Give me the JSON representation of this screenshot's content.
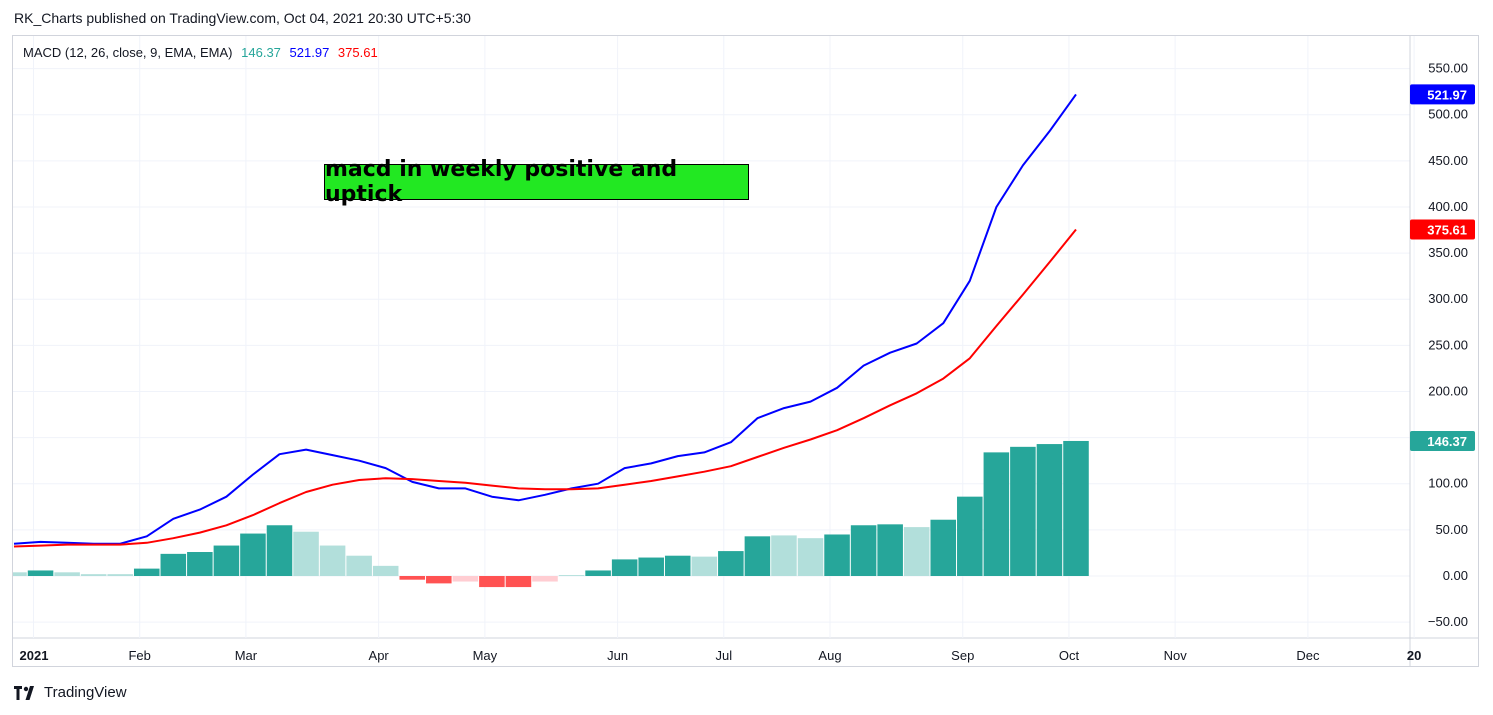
{
  "header": {
    "publisher_line": "RK_Charts published on TradingView.com, Oct 04, 2021 20:30 UTC+5:30"
  },
  "legend": {
    "indicator": "MACD (12, 26, close, 9, EMA, EMA)",
    "hist_value": "146.37",
    "macd_value": "521.97",
    "signal_value": "375.61"
  },
  "annotation": {
    "text": "macd in weekly positive and uptick"
  },
  "footer": {
    "brand": "TradingView"
  },
  "colors": {
    "macd": "#0000ff",
    "signal": "#ff0000",
    "hist_pos_strong": "#26a69a",
    "hist_pos_weak": "#b2dfdb",
    "hist_neg_strong": "#ff5252",
    "hist_neg_weak": "#ffcdd2"
  },
  "chart_data": {
    "type": "line",
    "title": "",
    "ylim": [
      -60,
      570
    ],
    "y_ticks": [
      "550.00",
      "500.00",
      "450.00",
      "400.00",
      "350.00",
      "300.00",
      "250.00",
      "200.00",
      "150.00",
      "100.00",
      "50.00",
      "0.00",
      "−50.00"
    ],
    "x_tick_labels": [
      "2021",
      "Feb",
      "Mar",
      "Apr",
      "May",
      "Jun",
      "Jul",
      "Aug",
      "Sep",
      "Oct",
      "Nov",
      "Dec",
      "20"
    ],
    "x_tick_weeks": [
      0,
      4,
      8,
      13,
      17,
      22,
      26,
      30,
      35,
      39,
      43,
      48,
      52
    ],
    "grid": true,
    "series": [
      {
        "name": "MACD",
        "type": "line",
        "color": "#0000ff",
        "values": [
          35,
          37,
          36,
          35,
          35,
          43,
          62,
          72,
          86,
          110,
          132,
          137,
          131,
          125,
          117,
          102,
          95,
          95,
          86,
          82,
          88,
          95,
          100,
          117,
          122,
          130,
          134,
          145,
          171,
          182,
          189,
          204,
          228,
          242,
          252,
          274,
          320,
          400,
          445,
          482,
          521.97
        ]
      },
      {
        "name": "Signal",
        "type": "line",
        "color": "#ff0000",
        "values": [
          32,
          33,
          34,
          34,
          34,
          36,
          41,
          47,
          55,
          66,
          79,
          91,
          99,
          104,
          106,
          105,
          103,
          101,
          98,
          95,
          94,
          94,
          95,
          99,
          103,
          108,
          113,
          119,
          129,
          139,
          148,
          158,
          171,
          185,
          198,
          214,
          236,
          271,
          305,
          340,
          375.61
        ]
      },
      {
        "name": "Histogram",
        "type": "bar",
        "values": [
          4,
          6,
          4,
          2,
          2,
          8,
          24,
          26,
          33,
          46,
          55,
          48,
          33,
          22,
          11,
          -4,
          -8,
          -6,
          -12,
          -12,
          -6,
          1,
          6,
          18,
          20,
          22,
          21,
          27,
          43,
          44,
          41,
          45,
          55,
          56,
          53,
          61,
          86,
          134,
          140,
          143,
          146.37
        ],
        "shade": [
          "w",
          "s",
          "w",
          "w",
          "w",
          "s",
          "s",
          "s",
          "s",
          "s",
          "s",
          "w",
          "w",
          "w",
          "w",
          "s",
          "s",
          "w",
          "s",
          "s",
          "w",
          "w",
          "s",
          "s",
          "s",
          "s",
          "w",
          "s",
          "s",
          "w",
          "w",
          "s",
          "s",
          "s",
          "w",
          "s",
          "s",
          "s",
          "s",
          "s",
          "s"
        ]
      }
    ],
    "price_labels": [
      {
        "value": 521.97,
        "text": "521.97",
        "color": "#0000ff"
      },
      {
        "value": 375.61,
        "text": "375.61",
        "color": "#ff0000"
      },
      {
        "value": 146.37,
        "text": "146.37",
        "color": "#26a69a"
      }
    ]
  }
}
